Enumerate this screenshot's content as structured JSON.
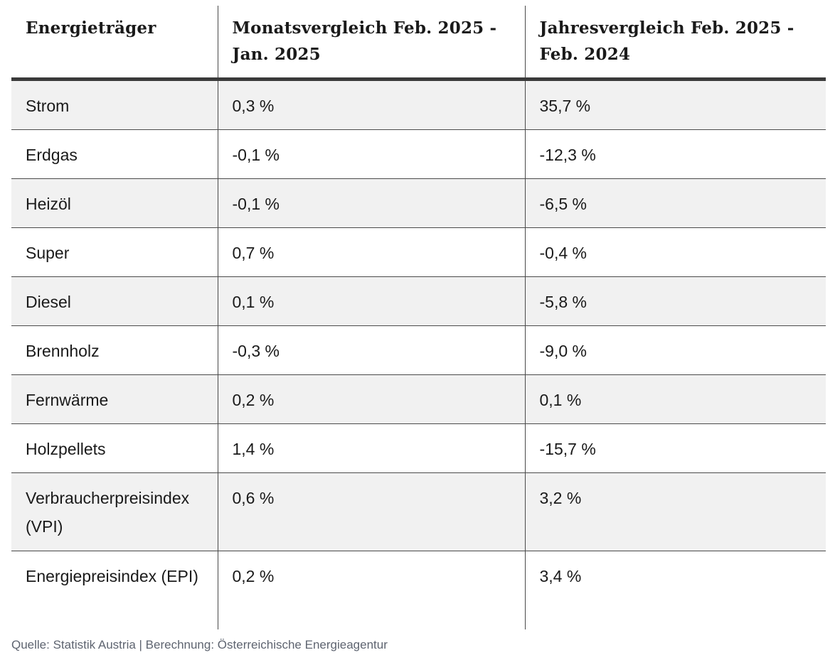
{
  "table": {
    "headers": [
      "Energieträger",
      "Monatsvergleich Feb. 2025 - Jan. 2025",
      "Jahresvergleich Feb. 2025 - Feb. 2024"
    ],
    "rows": [
      [
        "Strom",
        "0,3 %",
        "35,7 %"
      ],
      [
        "Erdgas",
        "-0,1 %",
        "-12,3 %"
      ],
      [
        "Heizöl",
        "-0,1 %",
        "-6,5 %"
      ],
      [
        "Super",
        "0,7 %",
        "-0,4 %"
      ],
      [
        "Diesel",
        "0,1 %",
        "-5,8 %"
      ],
      [
        "Brennholz",
        "-0,3 %",
        "-9,0 %"
      ],
      [
        "Fernwärme",
        "0,2 %",
        "0,1 %"
      ],
      [
        "Holzpellets",
        "1,4 %",
        "-15,7 %"
      ],
      [
        "Verbraucherpreisindex (VPI)",
        "0,6 %",
        "3,2 %"
      ],
      [
        "Energiepreisindex (EPI)",
        "0,2 %",
        "3,4 %"
      ]
    ]
  },
  "footer": {
    "source": "Quelle: Statistik Austria | Berechnung: Österreichische Energieagentur"
  }
}
